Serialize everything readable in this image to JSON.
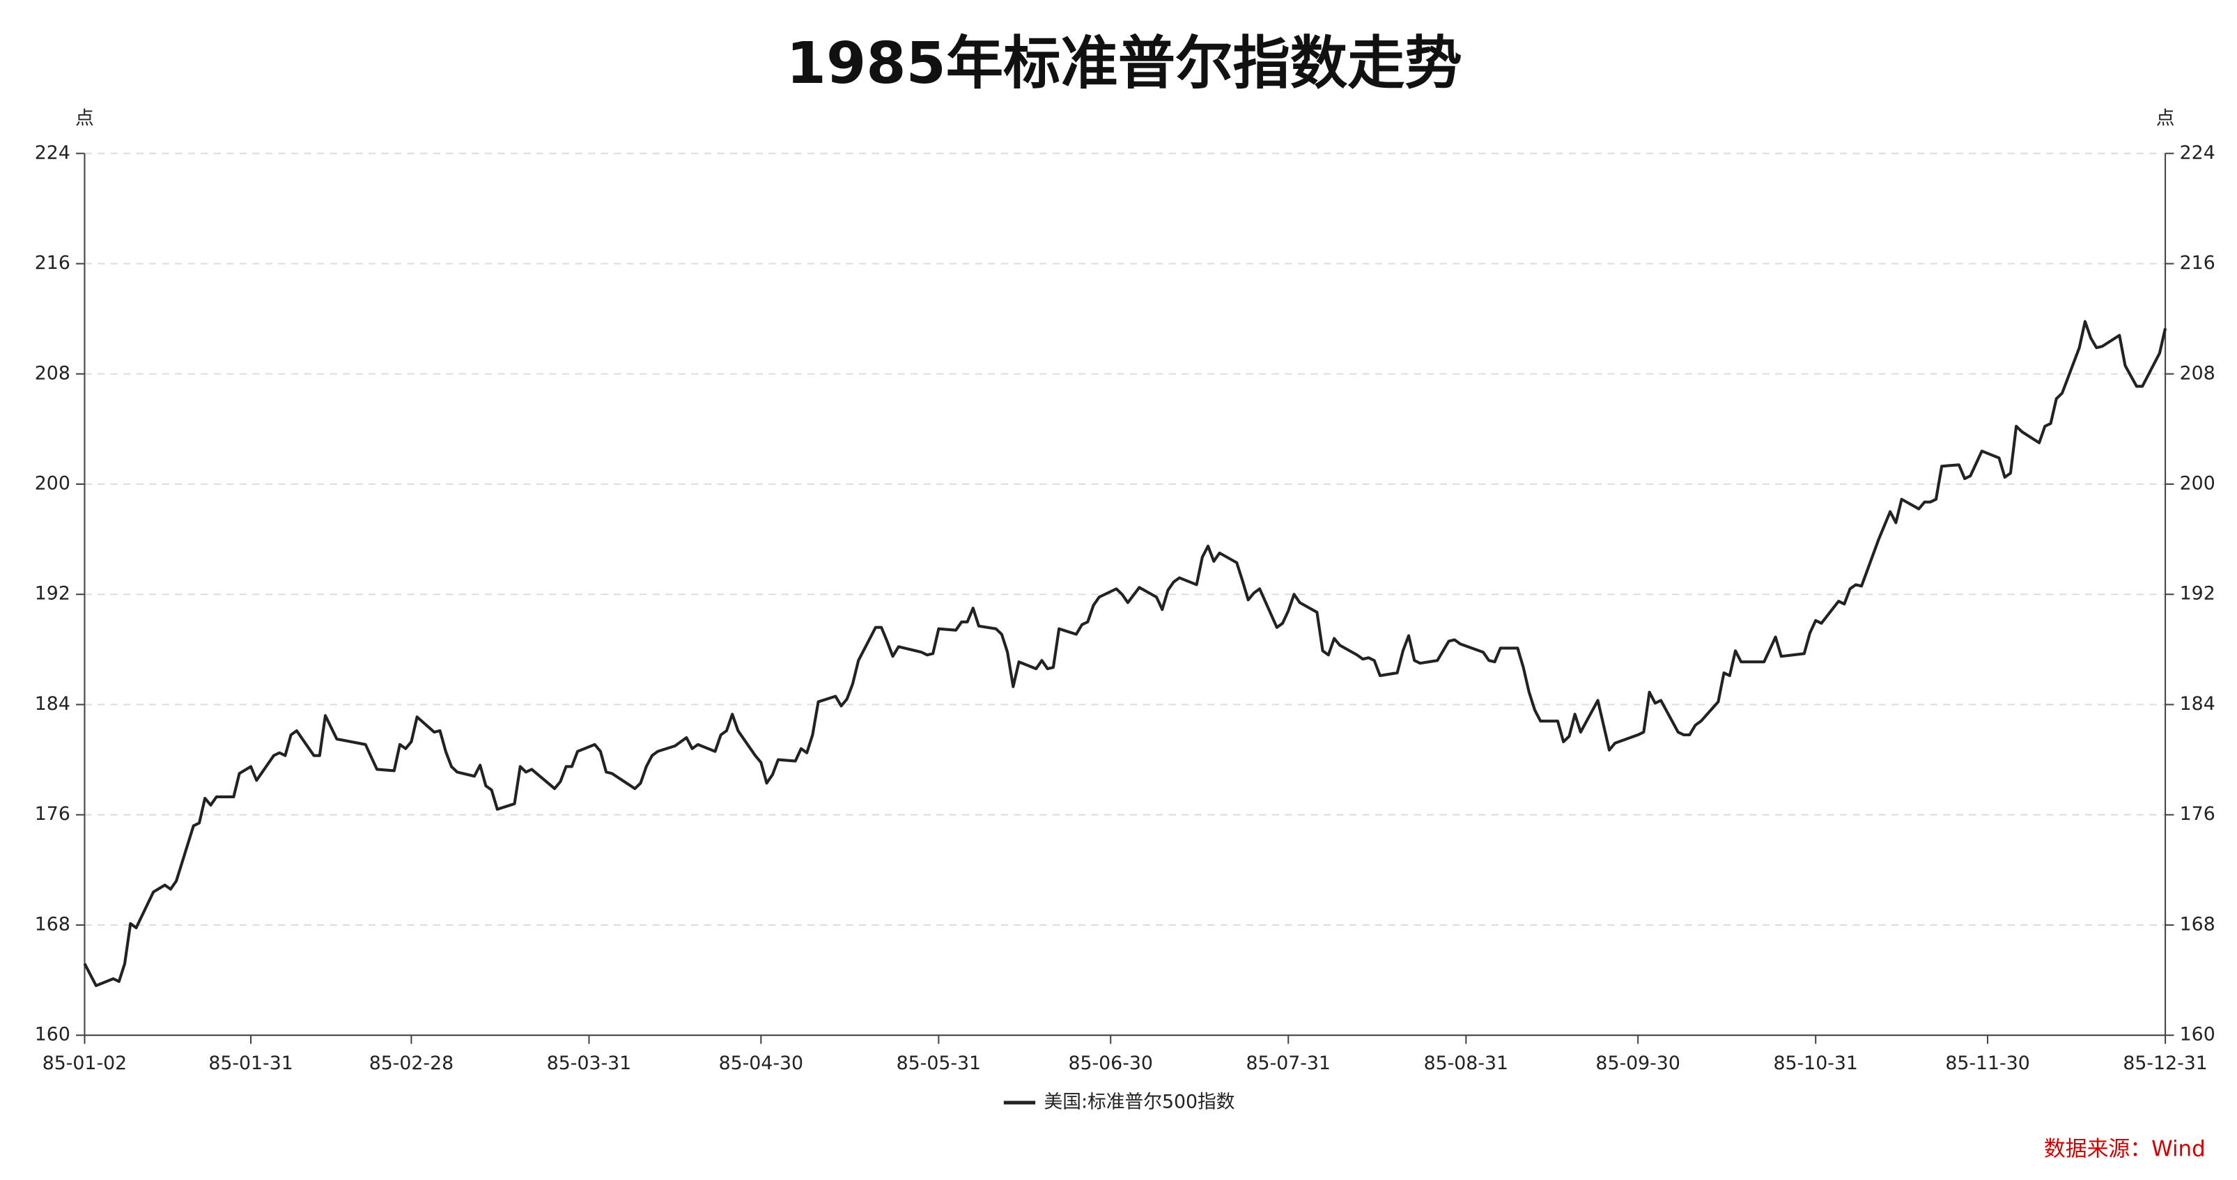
{
  "chart_data": {
    "type": "line",
    "title": "1985年标准普尔指数走势",
    "y_label": "点",
    "source": "数据来源：Wind",
    "x": [
      "85-01-02",
      "85-01-04",
      "85-01-07",
      "85-01-08",
      "85-01-09",
      "85-01-10",
      "85-01-11",
      "85-01-14",
      "85-01-16",
      "85-01-17",
      "85-01-18",
      "85-01-21",
      "85-01-22",
      "85-01-23",
      "85-01-24",
      "85-01-25",
      "85-01-28",
      "85-01-29",
      "85-01-31",
      "85-02-01",
      "85-02-04",
      "85-02-05",
      "85-02-06",
      "85-02-07",
      "85-02-08",
      "85-02-11",
      "85-02-12",
      "85-02-13",
      "85-02-15",
      "85-02-20",
      "85-02-22",
      "85-02-25",
      "85-02-26",
      "85-02-27",
      "85-02-28",
      "85-03-01",
      "85-03-04",
      "85-03-05",
      "85-03-06",
      "85-03-07",
      "85-03-08",
      "85-03-11",
      "85-03-12",
      "85-03-13",
      "85-03-14",
      "85-03-15",
      "85-03-18",
      "85-03-19",
      "85-03-20",
      "85-03-21",
      "85-03-25",
      "85-03-26",
      "85-03-27",
      "85-03-28",
      "85-03-29",
      "85-04-01",
      "85-04-02",
      "85-04-03",
      "85-04-04",
      "85-04-08",
      "85-04-09",
      "85-04-10",
      "85-04-11",
      "85-04-12",
      "85-04-15",
      "85-04-16",
      "85-04-17",
      "85-04-18",
      "85-04-19",
      "85-04-22",
      "85-04-23",
      "85-04-24",
      "85-04-25",
      "85-04-26",
      "85-04-29",
      "85-04-30",
      "85-05-01",
      "85-05-02",
      "85-05-03",
      "85-05-06",
      "85-05-07",
      "85-05-08",
      "85-05-09",
      "85-05-10",
      "85-05-13",
      "85-05-14",
      "85-05-15",
      "85-05-16",
      "85-05-17",
      "85-05-20",
      "85-05-21",
      "85-05-22",
      "85-05-23",
      "85-05-24",
      "85-05-28",
      "85-05-29",
      "85-05-30",
      "85-05-31",
      "85-06-03",
      "85-06-04",
      "85-06-05",
      "85-06-06",
      "85-06-07",
      "85-06-10",
      "85-06-11",
      "85-06-12",
      "85-06-13",
      "85-06-14",
      "85-06-17",
      "85-06-18",
      "85-06-19",
      "85-06-20",
      "85-06-21",
      "85-06-24",
      "85-06-25",
      "85-06-26",
      "85-06-27",
      "85-06-28",
      "85-07-01",
      "85-07-02",
      "85-07-03",
      "85-07-05",
      "85-07-08",
      "85-07-09",
      "85-07-10",
      "85-07-11",
      "85-07-12",
      "85-07-15",
      "85-07-16",
      "85-07-17",
      "85-07-18",
      "85-07-19",
      "85-07-22",
      "85-07-23",
      "85-07-24",
      "85-07-25",
      "85-07-26",
      "85-07-29",
      "85-07-30",
      "85-07-31",
      "85-08-01",
      "85-08-02",
      "85-08-05",
      "85-08-06",
      "85-08-07",
      "85-08-08",
      "85-08-09",
      "85-08-12",
      "85-08-13",
      "85-08-14",
      "85-08-15",
      "85-08-16",
      "85-08-19",
      "85-08-20",
      "85-08-21",
      "85-08-22",
      "85-08-23",
      "85-08-26",
      "85-08-27",
      "85-08-28",
      "85-08-29",
      "85-08-30",
      "85-09-03",
      "85-09-04",
      "85-09-05",
      "85-09-06",
      "85-09-09",
      "85-09-10",
      "85-09-11",
      "85-09-12",
      "85-09-13",
      "85-09-16",
      "85-09-17",
      "85-09-18",
      "85-09-19",
      "85-09-20",
      "85-09-23",
      "85-09-24",
      "85-09-25",
      "85-09-26",
      "85-09-30",
      "85-10-01",
      "85-10-02",
      "85-10-03",
      "85-10-04",
      "85-10-07",
      "85-10-08",
      "85-10-09",
      "85-10-10",
      "85-10-11",
      "85-10-14",
      "85-10-15",
      "85-10-16",
      "85-10-17",
      "85-10-18",
      "85-10-22",
      "85-10-24",
      "85-10-25",
      "85-10-29",
      "85-10-30",
      "85-10-31",
      "85-11-01",
      "85-11-04",
      "85-11-05",
      "85-11-06",
      "85-11-07",
      "85-11-08",
      "85-11-11",
      "85-11-13",
      "85-11-14",
      "85-11-15",
      "85-11-18",
      "85-11-19",
      "85-11-20",
      "85-11-21",
      "85-11-22",
      "85-11-25",
      "85-11-26",
      "85-11-27",
      "85-11-29",
      "85-12-02",
      "85-12-03",
      "85-12-04",
      "85-12-05",
      "85-12-06",
      "85-12-09",
      "85-12-10",
      "85-12-11",
      "85-12-12",
      "85-12-13",
      "85-12-16",
      "85-12-17",
      "85-12-18",
      "85-12-19",
      "85-12-20",
      "85-12-23",
      "85-12-24",
      "85-12-26",
      "85-12-27",
      "85-12-30",
      "85-12-31"
    ],
    "series": [
      {
        "name": "美国:标准普尔500指数",
        "color": "#222222",
        "values": [
          165.2,
          163.6,
          164.1,
          163.9,
          165.2,
          168.1,
          167.8,
          170.4,
          170.9,
          170.6,
          171.2,
          175.2,
          175.4,
          177.2,
          176.7,
          177.3,
          177.3,
          179.0,
          179.5,
          178.5,
          180.3,
          180.5,
          180.3,
          181.8,
          182.1,
          180.3,
          180.3,
          183.2,
          181.5,
          181.1,
          179.3,
          179.2,
          181.1,
          180.8,
          181.3,
          183.1,
          182.0,
          182.1,
          180.6,
          179.5,
          179.1,
          178.8,
          179.6,
          178.1,
          177.8,
          176.4,
          176.8,
          179.5,
          179.1,
          179.3,
          177.9,
          178.4,
          179.5,
          179.5,
          180.6,
          181.1,
          180.6,
          179.1,
          179.0,
          177.9,
          178.3,
          179.5,
          180.3,
          180.6,
          181.0,
          181.3,
          181.6,
          180.8,
          181.1,
          180.6,
          181.8,
          182.1,
          183.3,
          182.1,
          180.3,
          179.8,
          178.3,
          178.9,
          180.0,
          179.9,
          180.8,
          180.5,
          181.8,
          184.2,
          184.6,
          183.9,
          184.4,
          185.5,
          187.2,
          189.6,
          189.6,
          188.6,
          187.5,
          188.2,
          187.8,
          187.6,
          187.7,
          189.5,
          189.4,
          190.0,
          190.0,
          191.0,
          189.7,
          189.5,
          189.1,
          187.8,
          185.3,
          187.1,
          186.6,
          187.2,
          186.6,
          186.7,
          189.5,
          189.1,
          189.8,
          190.0,
          191.2,
          191.8,
          192.4,
          192.0,
          191.4,
          192.5,
          191.8,
          190.9,
          192.3,
          192.9,
          193.2,
          192.7,
          194.7,
          195.5,
          194.4,
          195.0,
          194.3,
          193.0,
          191.6,
          192.1,
          192.4,
          189.6,
          189.9,
          190.8,
          192.0,
          191.4,
          190.7,
          187.9,
          187.6,
          188.8,
          188.3,
          187.6,
          187.3,
          187.4,
          187.2,
          186.1,
          186.3,
          187.9,
          189.0,
          187.2,
          187.0,
          187.2,
          187.9,
          188.6,
          188.7,
          188.4,
          187.8,
          187.2,
          187.1,
          188.1,
          188.1,
          186.7,
          184.9,
          183.6,
          182.8,
          182.8,
          181.3,
          181.7,
          183.3,
          182.0,
          184.3,
          182.5,
          180.7,
          181.2,
          181.8,
          182.0,
          184.9,
          184.1,
          184.3,
          182.0,
          181.8,
          181.8,
          182.5,
          182.8,
          184.2,
          186.3,
          186.1,
          187.9,
          187.1,
          187.1,
          188.9,
          187.5,
          187.7,
          189.2,
          190.1,
          189.9,
          191.5,
          191.3,
          192.4,
          192.7,
          192.6,
          196.0,
          198.0,
          197.2,
          198.9,
          198.2,
          198.7,
          198.7,
          198.9,
          201.3,
          201.4,
          200.4,
          200.6,
          202.4,
          201.9,
          200.5,
          200.8,
          204.2,
          203.8,
          203.0,
          204.2,
          204.4,
          206.2,
          206.6,
          209.9,
          211.8,
          210.6,
          209.9,
          210.0,
          210.8,
          208.6,
          207.1,
          207.1,
          209.5,
          211.3
        ]
      }
    ],
    "xlim": [
      "85-01-02",
      "85-12-31"
    ],
    "xticks": [
      "85-01-02",
      "85-01-31",
      "85-02-28",
      "85-03-31",
      "85-04-30",
      "85-05-31",
      "85-06-30",
      "85-07-31",
      "85-08-31",
      "85-09-30",
      "85-10-31",
      "85-11-30",
      "85-12-31"
    ],
    "ylim": [
      160,
      224
    ],
    "yticks": [
      160,
      168,
      176,
      184,
      192,
      200,
      208,
      216,
      224
    ],
    "grid": true,
    "legend": "bottom"
  }
}
